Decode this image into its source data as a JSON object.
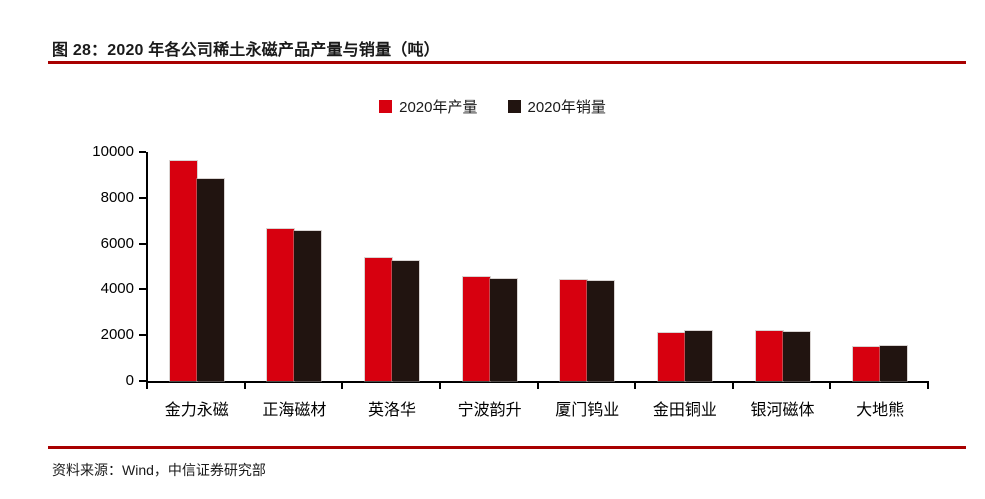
{
  "figure": {
    "title": "图 28：2020 年各公司稀土永磁产品产量与销量（吨）",
    "source": "资料来源：Wind，中信证券研究部"
  },
  "colors": {
    "production_bar": "#d7000f",
    "sales_bar": "#211410",
    "rule": "#a80000",
    "axis": "#000000",
    "text": "#1a1a1a"
  },
  "chart_data": {
    "type": "bar",
    "title": "2020 年各公司稀土永磁产品产量与销量（吨）",
    "categories": [
      "金力永磁",
      "正海磁材",
      "英洛华",
      "宁波韵升",
      "厦门钨业",
      "金田铜业",
      "银河磁体",
      "大地熊"
    ],
    "series": [
      {
        "name": "2020年产量",
        "color": "#d7000f",
        "values": [
          9600,
          6650,
          5350,
          4550,
          4400,
          2100,
          2200,
          1500
        ]
      },
      {
        "name": "2020年销量",
        "color": "#211410",
        "values": [
          8800,
          6550,
          5250,
          4450,
          4350,
          2200,
          2150,
          1550
        ]
      }
    ],
    "xlabel": "",
    "ylabel": "",
    "ylim": [
      0,
      10000
    ],
    "ytick_step": 2000,
    "ytick_labels": [
      "0",
      "2000",
      "4000",
      "6000",
      "8000",
      "10000"
    ],
    "grid": false,
    "legend_position": "top"
  }
}
